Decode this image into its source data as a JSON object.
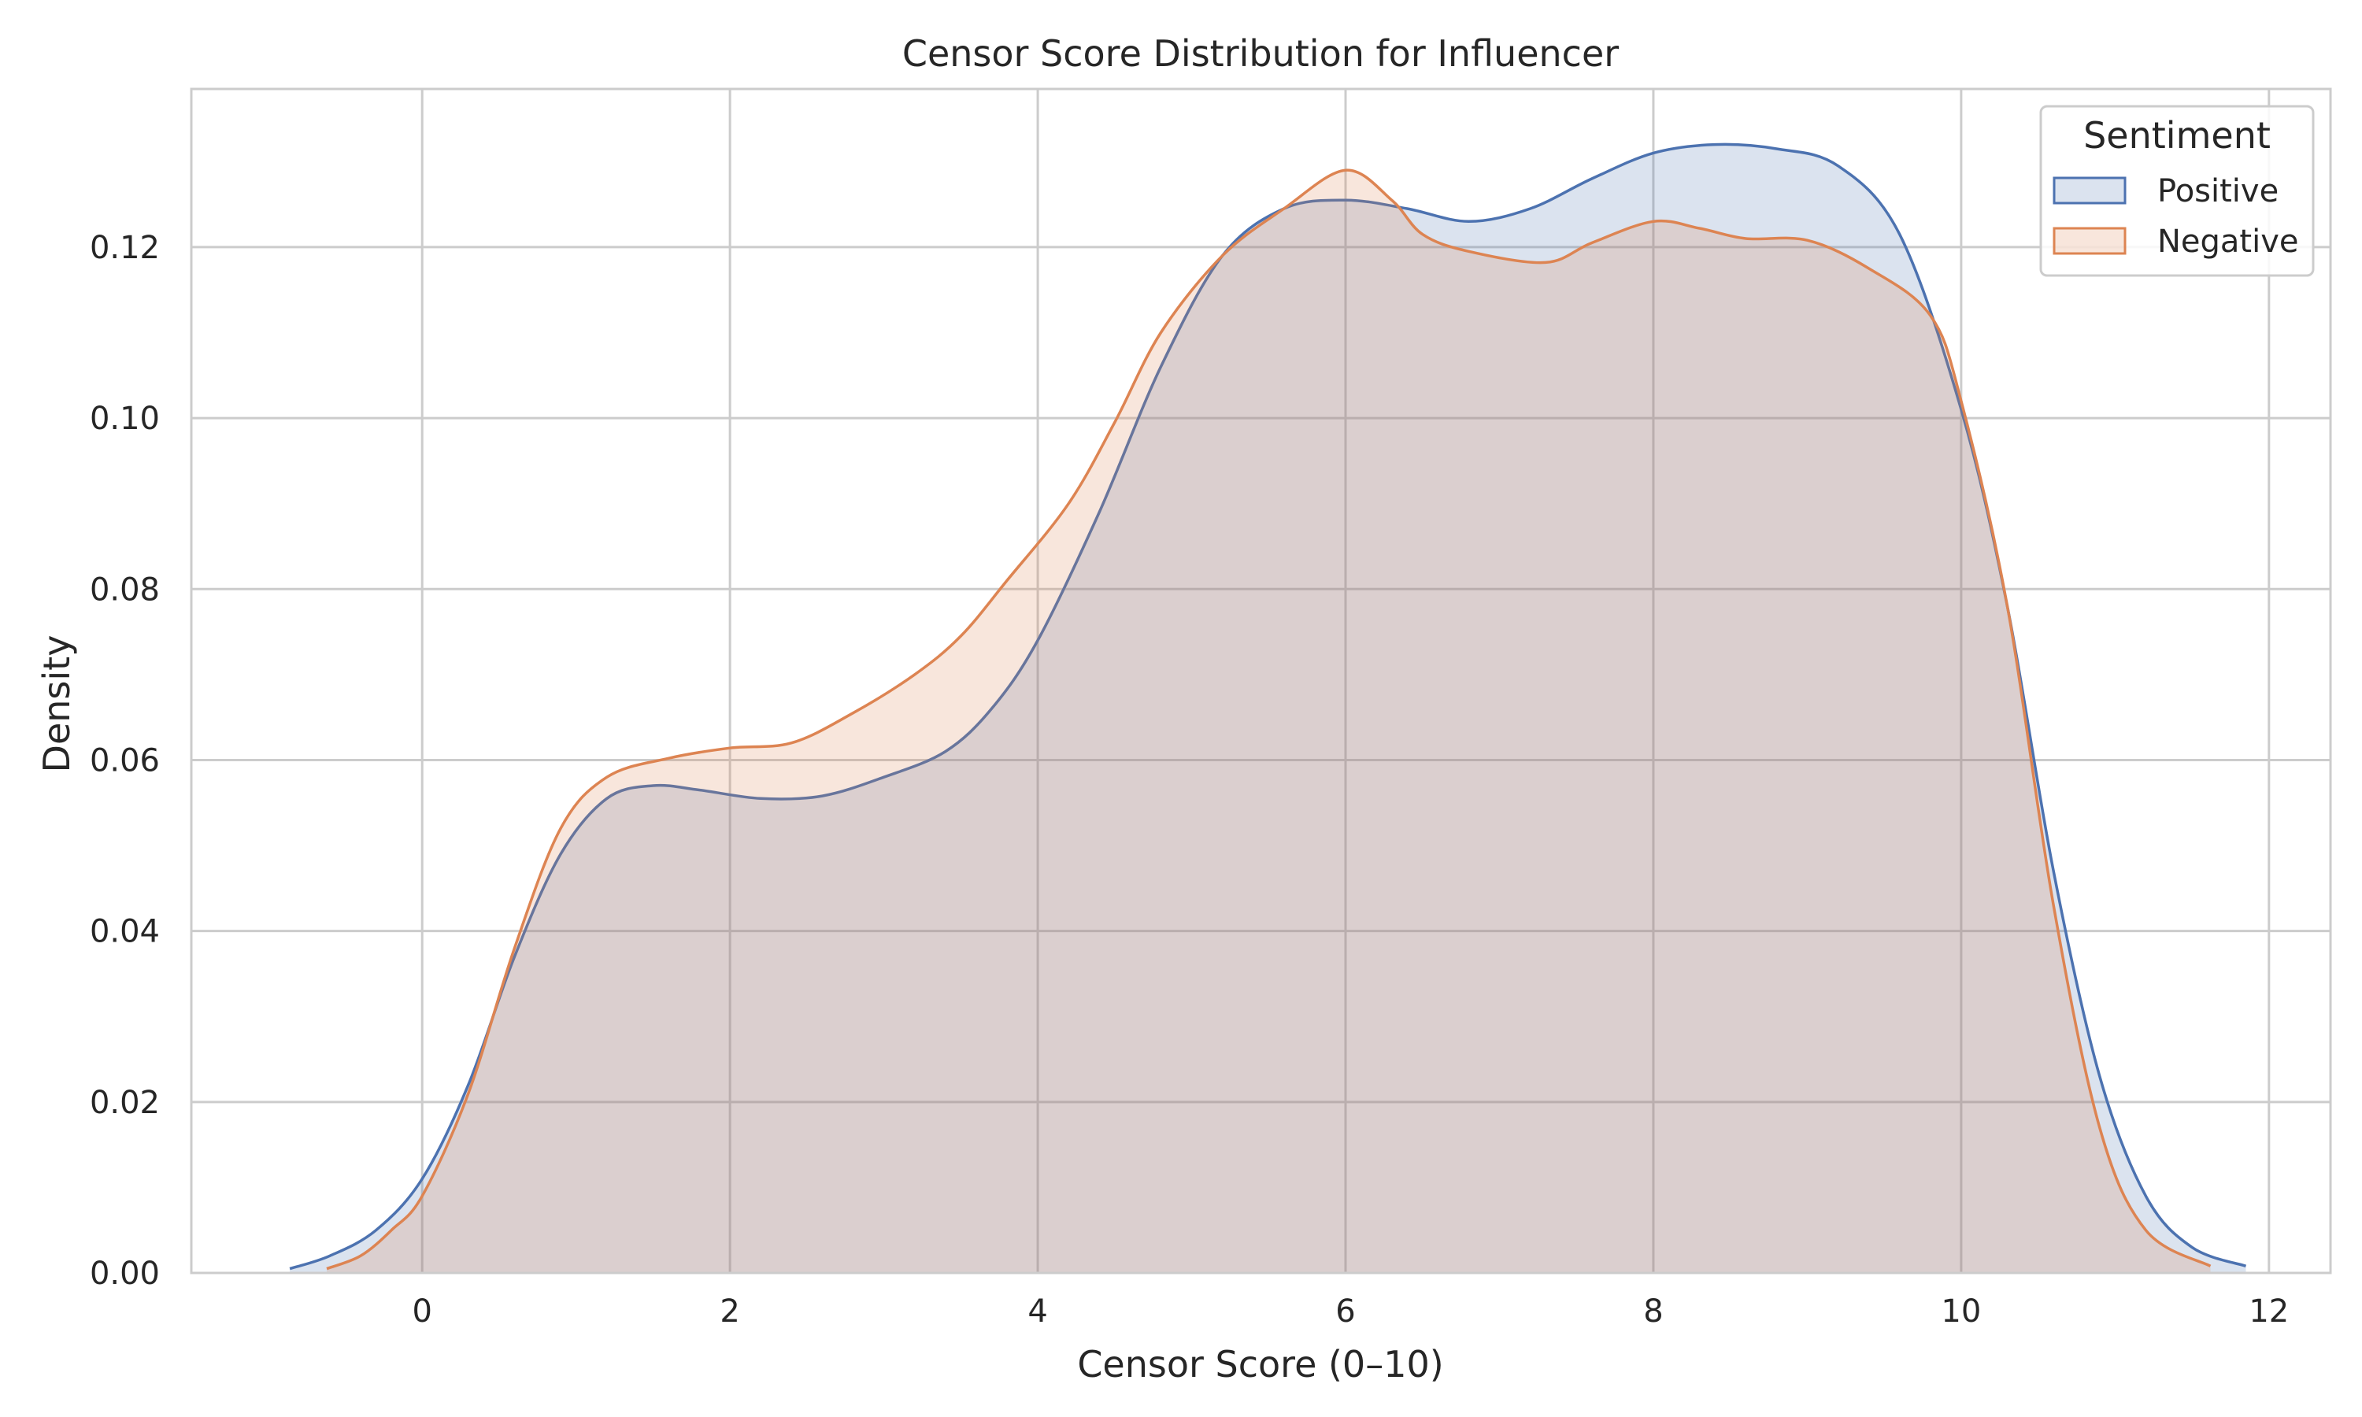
{
  "chart_data": {
    "type": "area",
    "title": "Censor Score Distribution for Influencer",
    "xlabel": "Censor Score (0–10)",
    "ylabel": "Density",
    "xlim": [
      -1.5,
      12.4
    ],
    "ylim": [
      0,
      0.1385
    ],
    "xticks": [
      0,
      2,
      4,
      6,
      8,
      10,
      12
    ],
    "yticks": [
      0.0,
      0.02,
      0.04,
      0.06,
      0.08,
      0.1,
      0.12
    ],
    "grid": true,
    "legend": {
      "title": "Sentiment",
      "position": "top-right"
    },
    "series": [
      {
        "name": "Positive",
        "color": "#4c72b0",
        "x": [
          -0.86,
          -0.6,
          -0.3,
          0.0,
          0.3,
          0.6,
          0.9,
          1.2,
          1.5,
          1.8,
          2.2,
          2.6,
          3.0,
          3.4,
          3.7,
          4.0,
          4.4,
          4.8,
          5.2,
          5.6,
          6.0,
          6.4,
          6.8,
          7.2,
          7.6,
          8.0,
          8.4,
          8.8,
          9.2,
          9.6,
          10.0,
          10.3,
          10.6,
          10.9,
          11.2,
          11.5,
          11.85
        ],
        "y": [
          0.0005,
          0.002,
          0.005,
          0.011,
          0.022,
          0.037,
          0.049,
          0.0555,
          0.057,
          0.0565,
          0.0555,
          0.0558,
          0.058,
          0.061,
          0.066,
          0.074,
          0.089,
          0.106,
          0.119,
          0.1245,
          0.1255,
          0.1245,
          0.123,
          0.1245,
          0.128,
          0.131,
          0.132,
          0.1315,
          0.1295,
          0.1215,
          0.101,
          0.078,
          0.047,
          0.023,
          0.009,
          0.003,
          0.0008
        ]
      },
      {
        "name": "Negative",
        "color": "#dd8452",
        "x": [
          -0.62,
          -0.4,
          -0.2,
          0.0,
          0.3,
          0.6,
          0.9,
          1.2,
          1.6,
          2.0,
          2.4,
          2.8,
          3.2,
          3.5,
          3.8,
          4.2,
          4.5,
          4.8,
          5.2,
          5.6,
          6.0,
          6.3,
          6.5,
          6.8,
          7.3,
          7.6,
          8.0,
          8.3,
          8.6,
          9.0,
          9.4,
          9.8,
          10.0,
          10.3,
          10.6,
          10.9,
          11.2,
          11.62
        ],
        "y": [
          0.0005,
          0.002,
          0.005,
          0.009,
          0.021,
          0.038,
          0.052,
          0.058,
          0.0602,
          0.0614,
          0.062,
          0.0655,
          0.07,
          0.0745,
          0.081,
          0.09,
          0.0995,
          0.11,
          0.119,
          0.1245,
          0.129,
          0.1255,
          0.1215,
          0.1195,
          0.1182,
          0.1205,
          0.123,
          0.1222,
          0.121,
          0.1208,
          0.1175,
          0.112,
          0.102,
          0.078,
          0.043,
          0.017,
          0.005,
          0.0008
        ]
      }
    ]
  }
}
